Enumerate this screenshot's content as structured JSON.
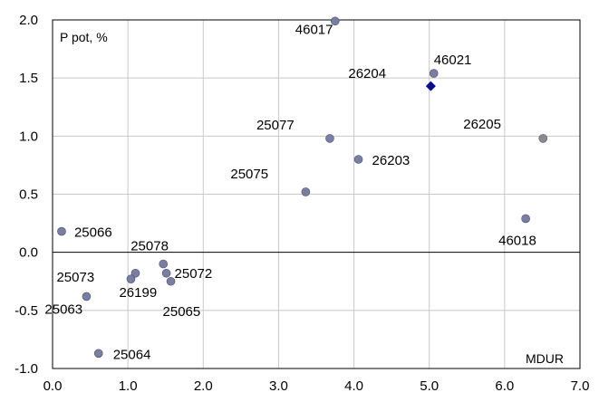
{
  "chart_data": {
    "type": "scatter",
    "ylabel": "P pot, %",
    "xlabel": "MDUR",
    "xlim": [
      0,
      7
    ],
    "ylim": [
      -1,
      2
    ],
    "x_ticks": [
      "0.0",
      "1.0",
      "2.0",
      "3.0",
      "4.0",
      "5.0",
      "6.0",
      "7.0"
    ],
    "y_ticks": [
      "-1.0",
      "-0.5",
      "0.0",
      "0.5",
      "1.0",
      "1.5",
      "2.0"
    ],
    "grid": true,
    "colors": {
      "point": "#7a7ea3",
      "highlight": "#0a0a8c",
      "gray": "#8c8c8c",
      "grid": "#c8c8c8"
    },
    "points": [
      {
        "name": "46017",
        "x": 3.75,
        "y": 1.99,
        "marker": "circle",
        "color": "point"
      },
      {
        "name": "46021",
        "x": 5.06,
        "y": 1.54,
        "marker": "circle",
        "color": "point"
      },
      {
        "name": "26204",
        "x": 5.02,
        "y": 1.43,
        "marker": "diamond",
        "color": "highlight"
      },
      {
        "name": "26205",
        "x": 6.51,
        "y": 0.98,
        "marker": "circle",
        "color": "gray"
      },
      {
        "name": "25077",
        "x": 3.68,
        "y": 0.98,
        "marker": "circle",
        "color": "point"
      },
      {
        "name": "26203",
        "x": 4.06,
        "y": 0.8,
        "marker": "circle",
        "color": "point"
      },
      {
        "name": "25075",
        "x": 3.36,
        "y": 0.52,
        "marker": "circle",
        "color": "point"
      },
      {
        "name": "46018",
        "x": 6.28,
        "y": 0.29,
        "marker": "circle",
        "color": "point"
      },
      {
        "name": "25066",
        "x": 0.12,
        "y": 0.18,
        "marker": "circle",
        "color": "point"
      },
      {
        "name": "25078",
        "x": 1.47,
        "y": -0.1,
        "marker": "circle",
        "color": "point"
      },
      {
        "name": "25073",
        "x": 1.1,
        "y": -0.18,
        "marker": "circle",
        "color": "point"
      },
      {
        "name": "25072",
        "x": 1.51,
        "y": -0.18,
        "marker": "circle",
        "color": "point"
      },
      {
        "name": "26199",
        "x": 1.04,
        "y": -0.23,
        "marker": "circle",
        "color": "point"
      },
      {
        "name": "25065",
        "x": 1.57,
        "y": -0.25,
        "marker": "circle",
        "color": "point"
      },
      {
        "name": "25063",
        "x": 0.45,
        "y": -0.38,
        "marker": "circle",
        "color": "point"
      },
      {
        "name": "25064",
        "x": 0.61,
        "y": -0.87,
        "marker": "circle",
        "color": "point"
      }
    ]
  }
}
